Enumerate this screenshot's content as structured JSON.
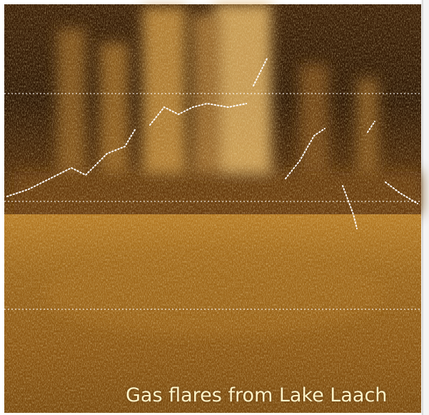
{
  "caption": "Gas flares from Lake Laach"
}
